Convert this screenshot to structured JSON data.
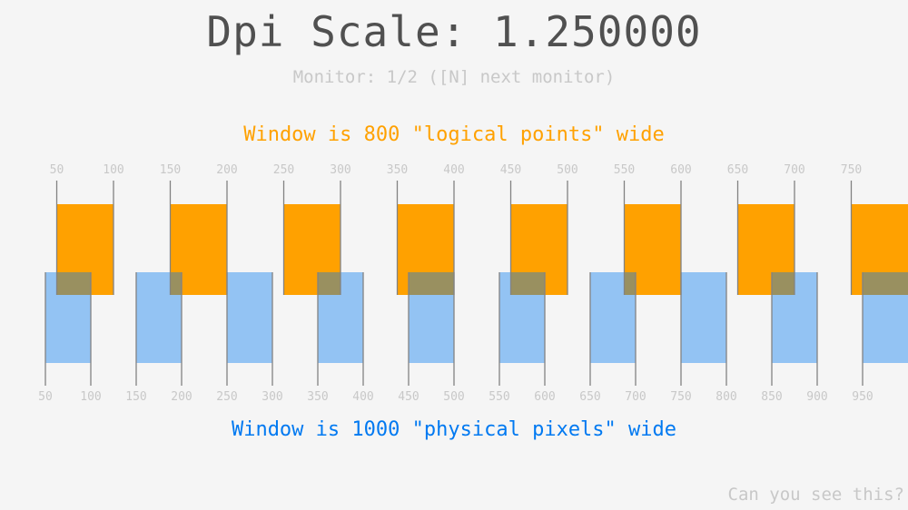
{
  "title": "Dpi Scale: 1.250000",
  "monitor_text": "Monitor: 1/2 ([N] next monitor)",
  "logical_text": "Window is 800 \"logical points\" wide",
  "physical_text": "Window is 1000 \"physical pixels\" wide",
  "hidden_text": "Can you see this?",
  "dpi_scale": 1.25,
  "logical_ticks": [
    50,
    100,
    150,
    200,
    250,
    300,
    350,
    400,
    450,
    500,
    550,
    600,
    650,
    700,
    750
  ],
  "physical_ticks": [
    50,
    100,
    150,
    200,
    250,
    300,
    350,
    400,
    450,
    500,
    550,
    600,
    650,
    700,
    750,
    800,
    850,
    900,
    950
  ],
  "colors": {
    "background": "#f5f5f5",
    "logical": "#ffa100",
    "physical": "#0079f1",
    "lines": "#828282",
    "labels": "#c8c8c8",
    "title": "#505050"
  }
}
